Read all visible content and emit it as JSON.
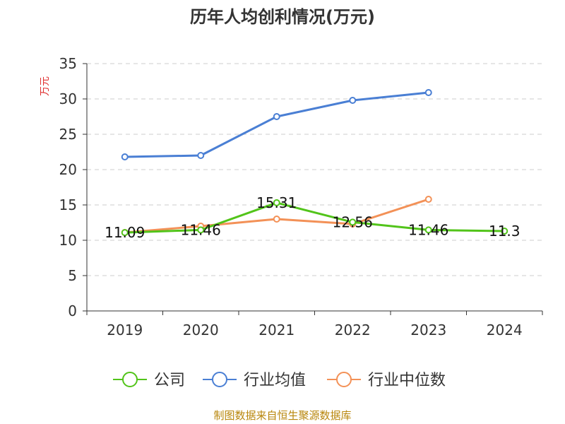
{
  "chart_data": {
    "type": "line",
    "title": "历年人均创利情况(万元)",
    "xlabel": "",
    "ylabel": "万元",
    "categories": [
      "2019",
      "2020",
      "2021",
      "2022",
      "2023",
      "2024"
    ],
    "ylim": [
      0,
      35
    ],
    "yticks": [
      0,
      5,
      10,
      15,
      20,
      25,
      30,
      35
    ],
    "grid": true,
    "legend_position": "bottom",
    "series": [
      {
        "name": "公司",
        "color": "#52c41a",
        "values": [
          11.09,
          11.46,
          15.31,
          12.56,
          11.46,
          11.3
        ],
        "labels": [
          "11.09",
          "11.46",
          "15.31",
          "12.56",
          "11.46",
          "11.3"
        ]
      },
      {
        "name": "行业均值",
        "color": "#4a7fd4",
        "values": [
          21.8,
          22.0,
          27.5,
          29.8,
          30.9,
          null
        ]
      },
      {
        "name": "行业中位数",
        "color": "#f39157",
        "values": [
          11.1,
          12.0,
          13.0,
          12.3,
          15.8,
          null
        ]
      }
    ]
  },
  "footer": {
    "source": "制图数据来自恒生聚源数据库"
  }
}
